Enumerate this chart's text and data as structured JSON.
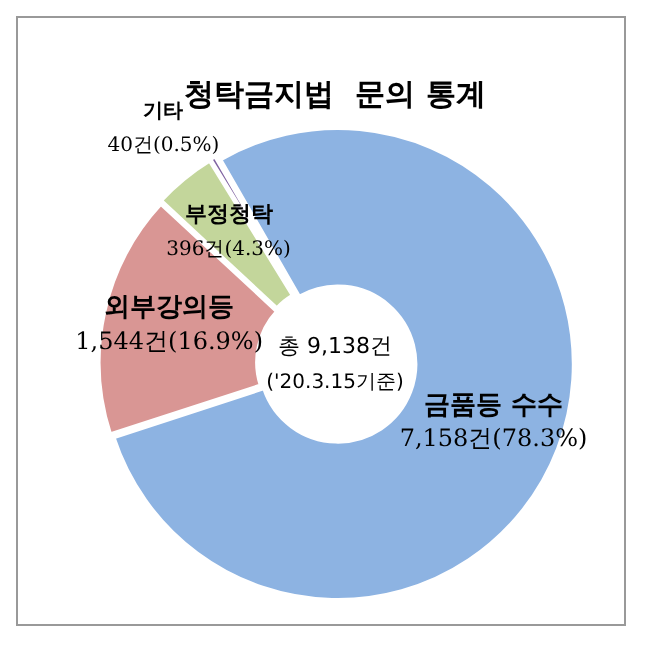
{
  "chart_data": {
    "type": "donut",
    "title": "청탁금지법  문의 통계",
    "categories": [
      "금품등 수수",
      "외부강의등",
      "부정청탁",
      "기타"
    ],
    "values": [
      7158,
      1544,
      396,
      40
    ],
    "colors": [
      "#8db3e2",
      "#d99694",
      "#c3d69b",
      "#8064a2"
    ],
    "value_labels": [
      "7,158건(78.3%)",
      "1,544건(16.9%)",
      "396건(4.3%)",
      "40건(0.5%)"
    ],
    "annotations": [
      "총 9,138건",
      "('20.3.15기준)"
    ],
    "legend": false
  }
}
